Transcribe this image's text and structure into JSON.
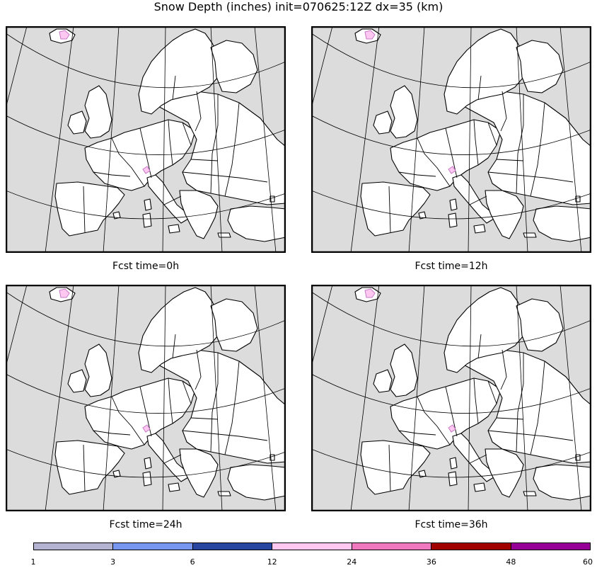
{
  "title": "Snow Depth (inches) init=070625:12Z dx=35 (km)",
  "panels": [
    {
      "caption": "Fcst time=0h"
    },
    {
      "caption": "Fcst time=12h"
    },
    {
      "caption": "Fcst time=24h"
    },
    {
      "caption": "Fcst time=36h"
    }
  ],
  "colorbar": {
    "labels": [
      "1",
      "3",
      "6",
      "12",
      "24",
      "36",
      "48",
      "60"
    ],
    "colors": [
      "#b4b4d2",
      "#7896f0",
      "#2846a0",
      "#ffc8f0",
      "#f078be",
      "#a00000",
      "#960096"
    ]
  },
  "map_colors": {
    "ocean": "#dcdcdc",
    "land": "#ffffff",
    "snow": "#c878c8"
  }
}
